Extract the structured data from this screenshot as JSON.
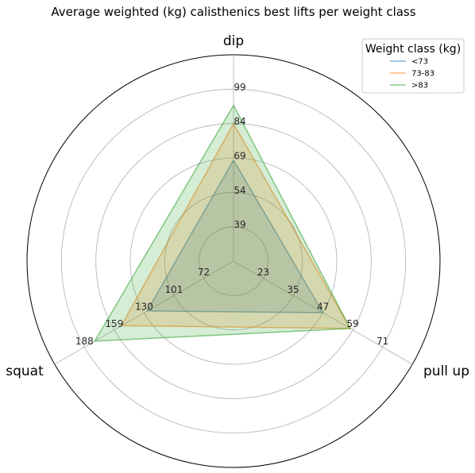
{
  "chart_data": {
    "type": "radar",
    "title": "Average weighted (kg) calisthenics best lifts per weight class",
    "axes": [
      {
        "name": "dip",
        "ticks": [
          "39",
          "54",
          "69",
          "84",
          "99"
        ],
        "min": 24,
        "max": 114
      },
      {
        "name": "pull up",
        "ticks": [
          "23",
          "35",
          "47",
          "59",
          "71"
        ],
        "min": 11,
        "max": 83
      },
      {
        "name": "squat",
        "ticks": [
          "72",
          "101",
          "130",
          "159",
          "188"
        ],
        "min": 43,
        "max": 217
      }
    ],
    "series": [
      {
        "name": "<73",
        "color": "#1f77b4",
        "values": [
          68,
          47,
          127
        ]
      },
      {
        "name": "73-83",
        "color": "#ff7f0e",
        "values": [
          84,
          58,
          152
        ]
      },
      {
        "name": ">83",
        "color": "#2ca02c",
        "values": [
          92,
          58,
          178
        ]
      }
    ],
    "legend": {
      "title": "Weight class (kg)",
      "placement": "top-right"
    }
  }
}
